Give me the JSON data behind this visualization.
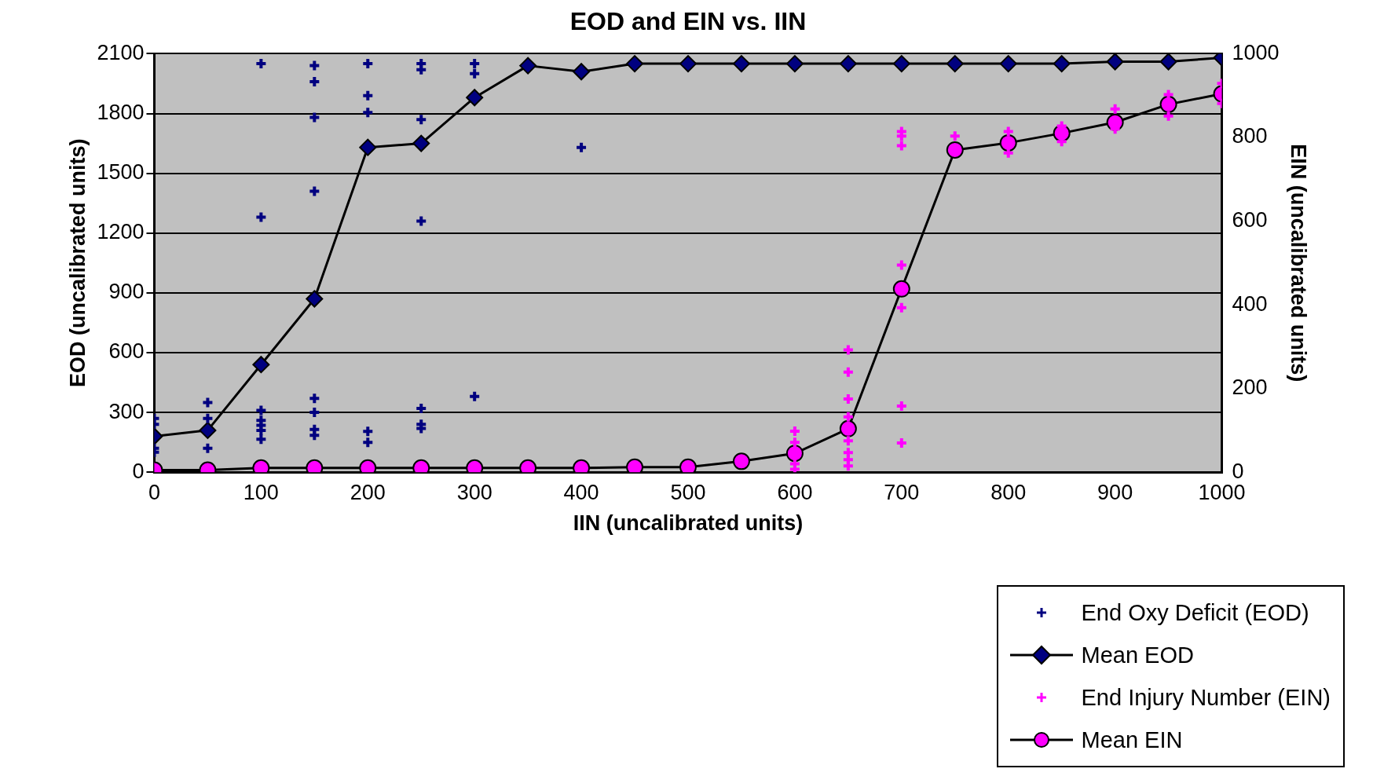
{
  "chart_data": {
    "type": "scatter",
    "title": "EOD and EIN vs. IIN",
    "xlabel": "IIN (uncalibrated units)",
    "ylabel": "EOD (uncalibrated units)",
    "y2label": "EIN (uncalibrated units)",
    "xlim": [
      0,
      1000
    ],
    "xticks": [
      0,
      100,
      200,
      300,
      400,
      500,
      600,
      700,
      800,
      900,
      1000
    ],
    "ylim": [
      0,
      2100
    ],
    "yticks": [
      0,
      300,
      600,
      900,
      1200,
      1500,
      1800,
      2100
    ],
    "y2lim": [
      0,
      1000
    ],
    "y2ticks": [
      0,
      200,
      400,
      600,
      800,
      1000
    ],
    "grid": "y",
    "legend": "bottom right",
    "series": [
      {
        "name": "End Oxy Deficit (EOD)",
        "type": "scatter",
        "marker": "cross",
        "color": "#000080",
        "x": [
          0,
          0,
          0,
          0,
          50,
          50,
          50,
          100,
          100,
          100,
          100,
          100,
          100,
          100,
          150,
          150,
          150,
          150,
          150,
          150,
          150,
          150,
          200,
          200,
          200,
          200,
          200,
          250,
          250,
          250,
          250,
          250,
          250,
          250,
          300,
          300,
          300,
          400
        ],
        "values": [
          270,
          240,
          120,
          100,
          350,
          270,
          120,
          2050,
          1280,
          310,
          260,
          235,
          210,
          165,
          2040,
          1960,
          1780,
          1410,
          370,
          300,
          215,
          185,
          2050,
          1890,
          1805,
          205,
          150,
          2050,
          2020,
          1770,
          1260,
          320,
          240,
          220,
          2050,
          2000,
          380,
          1630
        ]
      },
      {
        "name": "Mean EOD",
        "type": "line",
        "marker": "diamond",
        "color": "#000080",
        "x": [
          0,
          50,
          100,
          150,
          200,
          250,
          300,
          350,
          400,
          450,
          500,
          550,
          600,
          650,
          700,
          750,
          800,
          850,
          900,
          950,
          1000
        ],
        "values": [
          180,
          210,
          540,
          870,
          1630,
          1650,
          1880,
          2040,
          2010,
          2050,
          2050,
          2050,
          2050,
          2050,
          2050,
          2050,
          2050,
          2050,
          2060,
          2060,
          2080
        ]
      },
      {
        "name": "End Injury Number (EIN)",
        "type": "scatter",
        "marker": "cross",
        "color": "#ff00ff",
        "axis": "y2",
        "x": [
          600,
          600,
          600,
          600,
          650,
          650,
          650,
          650,
          650,
          650,
          650,
          650,
          700,
          700,
          700,
          700,
          700,
          700,
          700,
          750,
          800,
          800,
          850,
          850,
          900,
          900,
          950,
          950,
          1000,
          1000
        ],
        "values": [
          98,
          71,
          20,
          7,
          292,
          239,
          175,
          132,
          75,
          47,
          30,
          15,
          814,
          803,
          780,
          495,
          393,
          158,
          70,
          803,
          814,
          763,
          827,
          790,
          868,
          820,
          902,
          851,
          929,
          881
        ]
      },
      {
        "name": "Mean EIN",
        "type": "line",
        "marker": "circle",
        "color": "#ff00ff",
        "axis": "y2",
        "x": [
          0,
          50,
          100,
          150,
          200,
          250,
          300,
          350,
          400,
          450,
          500,
          550,
          600,
          650,
          700,
          750,
          800,
          850,
          900,
          950,
          1000
        ],
        "values": [
          5,
          5,
          10,
          10,
          10,
          10,
          10,
          10,
          10,
          12,
          12,
          26,
          45,
          104,
          438,
          770,
          787,
          810,
          836,
          879,
          904
        ]
      }
    ]
  }
}
